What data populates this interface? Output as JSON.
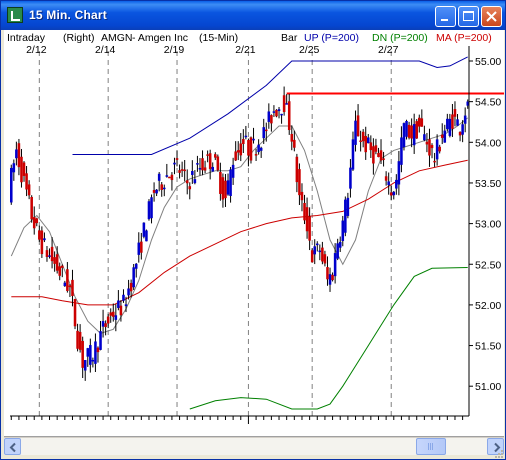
{
  "window": {
    "title": "15 Min. Chart"
  },
  "header": {
    "intraday": "Intraday",
    "axis_side": "(Right)",
    "symbol": "AMGN",
    "company": "- Amgen Inc",
    "interval": "(15-Min)",
    "bar_label": "Bar",
    "up_label": "UP (P=200)",
    "dn_label": "DN (P=200)",
    "ma_label": "MA (P=200)"
  },
  "colors": {
    "up_band": "#0000aa",
    "dn_band": "#008000",
    "ma_line": "#cc0000",
    "resistance": "#ff0000",
    "up_bar": "#0000cc",
    "down_bar": "#cc0000",
    "short_ma": "#808080"
  },
  "chart_data": {
    "type": "candlestick",
    "x_tick_labels": [
      "2/12",
      "2/14",
      "2/19",
      "2/21",
      "2/25",
      "2/27"
    ],
    "y_ticks": [
      51.0,
      51.5,
      52.0,
      52.5,
      53.0,
      53.5,
      54.0,
      54.5,
      55.0
    ],
    "y_tick_labels": [
      "51.00",
      "51.50",
      "52.00",
      "52.50",
      "53.00",
      "53.50",
      "54.00",
      "54.50",
      "55.00"
    ],
    "ylim": [
      50.7,
      55.1
    ],
    "resistance_level": 54.6,
    "close_path": [
      [
        0,
        53.4
      ],
      [
        3,
        53.9
      ],
      [
        6,
        53.5
      ],
      [
        9,
        53.1
      ],
      [
        12,
        52.8
      ],
      [
        16,
        52.6
      ],
      [
        20,
        52.4
      ],
      [
        24,
        52.2
      ],
      [
        27,
        51.6
      ],
      [
        29,
        51.3
      ],
      [
        33,
        51.4
      ],
      [
        37,
        51.7
      ],
      [
        41,
        51.9
      ],
      [
        45,
        52.0
      ],
      [
        49,
        52.4
      ],
      [
        53,
        52.9
      ],
      [
        57,
        53.4
      ],
      [
        62,
        53.6
      ],
      [
        66,
        53.7
      ],
      [
        70,
        53.5
      ],
      [
        75,
        53.7
      ],
      [
        80,
        53.8
      ],
      [
        83,
        53.5
      ],
      [
        85,
        53.3
      ],
      [
        88,
        53.8
      ],
      [
        92,
        54.0
      ],
      [
        95,
        53.9
      ],
      [
        100,
        54.1
      ],
      [
        104,
        54.4
      ],
      [
        108,
        54.5
      ],
      [
        111,
        54.1
      ],
      [
        114,
        53.3
      ],
      [
        117,
        53.0
      ],
      [
        119,
        52.6
      ],
      [
        122,
        52.7
      ],
      [
        125,
        52.3
      ],
      [
        127,
        52.4
      ],
      [
        129,
        52.8
      ],
      [
        131,
        53.0
      ],
      [
        133,
        53.4
      ],
      [
        136,
        54.2
      ],
      [
        139,
        54.0
      ],
      [
        142,
        53.9
      ],
      [
        145,
        53.8
      ],
      [
        148,
        53.6
      ],
      [
        150,
        53.4
      ],
      [
        152,
        53.5
      ],
      [
        155,
        54.2
      ],
      [
        158,
        54.1
      ],
      [
        161,
        54.2
      ],
      [
        164,
        54.0
      ],
      [
        167,
        53.8
      ],
      [
        170,
        54.1
      ],
      [
        174,
        54.3
      ],
      [
        177,
        54.2
      ],
      [
        179,
        54.4
      ]
    ],
    "up_band": [
      [
        24,
        53.85
      ],
      [
        40,
        53.85
      ],
      [
        55,
        53.85
      ],
      [
        70,
        54.05
      ],
      [
        85,
        54.35
      ],
      [
        100,
        54.7
      ],
      [
        110,
        55.0
      ],
      [
        160,
        55.0
      ],
      [
        167,
        54.92
      ],
      [
        172,
        54.94
      ],
      [
        179,
        55.05
      ]
    ],
    "ma_line": [
      [
        0,
        52.1
      ],
      [
        12,
        52.1
      ],
      [
        20,
        52.05
      ],
      [
        30,
        52.0
      ],
      [
        40,
        52.0
      ],
      [
        50,
        52.15
      ],
      [
        60,
        52.4
      ],
      [
        70,
        52.6
      ],
      [
        80,
        52.75
      ],
      [
        90,
        52.9
      ],
      [
        100,
        53.0
      ],
      [
        110,
        53.07
      ],
      [
        120,
        53.1
      ],
      [
        130,
        53.15
      ],
      [
        140,
        53.3
      ],
      [
        150,
        53.5
      ],
      [
        160,
        53.65
      ],
      [
        170,
        53.72
      ],
      [
        179,
        53.78
      ]
    ],
    "dn_band": [
      [
        70,
        50.72
      ],
      [
        80,
        50.82
      ],
      [
        90,
        50.86
      ],
      [
        100,
        50.84
      ],
      [
        110,
        50.72
      ],
      [
        120,
        50.72
      ],
      [
        125,
        50.78
      ],
      [
        130,
        51.0
      ],
      [
        140,
        51.5
      ],
      [
        150,
        52.0
      ],
      [
        158,
        52.35
      ],
      [
        165,
        52.45
      ],
      [
        179,
        52.46
      ]
    ],
    "short_ma": [
      [
        0,
        52.6
      ],
      [
        5,
        52.95
      ],
      [
        10,
        53.1
      ],
      [
        15,
        52.9
      ],
      [
        20,
        52.5
      ],
      [
        25,
        52.1
      ],
      [
        30,
        51.8
      ],
      [
        35,
        51.65
      ],
      [
        40,
        51.7
      ],
      [
        45,
        51.95
      ],
      [
        50,
        52.3
      ],
      [
        55,
        52.8
      ],
      [
        60,
        53.2
      ],
      [
        65,
        53.45
      ],
      [
        70,
        53.55
      ],
      [
        75,
        53.6
      ],
      [
        80,
        53.65
      ],
      [
        85,
        53.65
      ],
      [
        90,
        53.7
      ],
      [
        95,
        53.9
      ],
      [
        100,
        54.05
      ],
      [
        105,
        54.2
      ],
      [
        110,
        54.2
      ],
      [
        115,
        53.9
      ],
      [
        120,
        53.4
      ],
      [
        125,
        52.8
      ],
      [
        130,
        52.5
      ],
      [
        135,
        52.8
      ],
      [
        140,
        53.4
      ],
      [
        145,
        53.8
      ],
      [
        150,
        53.9
      ],
      [
        155,
        53.95
      ],
      [
        160,
        54.0
      ],
      [
        165,
        54.05
      ],
      [
        170,
        54.1
      ],
      [
        175,
        54.2
      ],
      [
        179,
        54.3
      ]
    ]
  }
}
